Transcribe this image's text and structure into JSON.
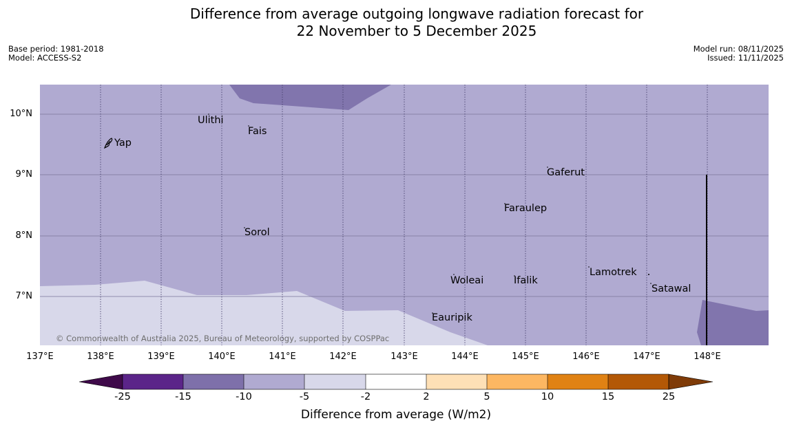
{
  "title_line1": "Difference from average outgoing longwave radiation forecast for",
  "title_line2": "22 November to 5 December 2025",
  "base_period": "Base period: 1981-2018",
  "model": "Model: ACCESS-S2",
  "model_run": "Model run: 08/11/2025",
  "issued": "Issued: 11/11/2025",
  "places": [
    {
      "name": "Yap"
    },
    {
      "name": "Ulithi"
    },
    {
      "name": "Fais"
    },
    {
      "name": "Gaferut"
    },
    {
      "name": "Faraulep"
    },
    {
      "name": "Sorol"
    },
    {
      "name": "Lamotrek"
    },
    {
      "name": "Woleai"
    },
    {
      "name": "Ifalik"
    },
    {
      "name": "Satawal"
    },
    {
      "name": "Eauripik"
    }
  ],
  "copyright": "© Commonwealth of Australia 2025, Bureau of Meteorology, supported by COSPPac",
  "lat_labels": [
    "10°N",
    "9°N",
    "8°N",
    "7°N"
  ],
  "lon_labels": [
    "137°E",
    "138°E",
    "139°E",
    "140°E",
    "141°E",
    "142°E",
    "143°E",
    "144°E",
    "145°E",
    "146°E",
    "147°E",
    "148°E"
  ],
  "colorbar": {
    "label": "Difference from average (W/m2)",
    "ticks": [
      "-25",
      "-15",
      "-10",
      "-5",
      "-2",
      "2",
      "5",
      "10",
      "15",
      "25"
    ],
    "colors": [
      "#3f0a4a",
      "#5b2489",
      "#7e70aa",
      "#b0aad1",
      "#d8d8ea",
      "#ffffff",
      "#fee0b6",
      "#fdb762",
      "#e08214",
      "#b35806",
      "#7f3b08"
    ]
  },
  "fills": {
    "base": "#b0aad1",
    "light": "#d8d8ea",
    "dark": "#8175ad"
  }
}
